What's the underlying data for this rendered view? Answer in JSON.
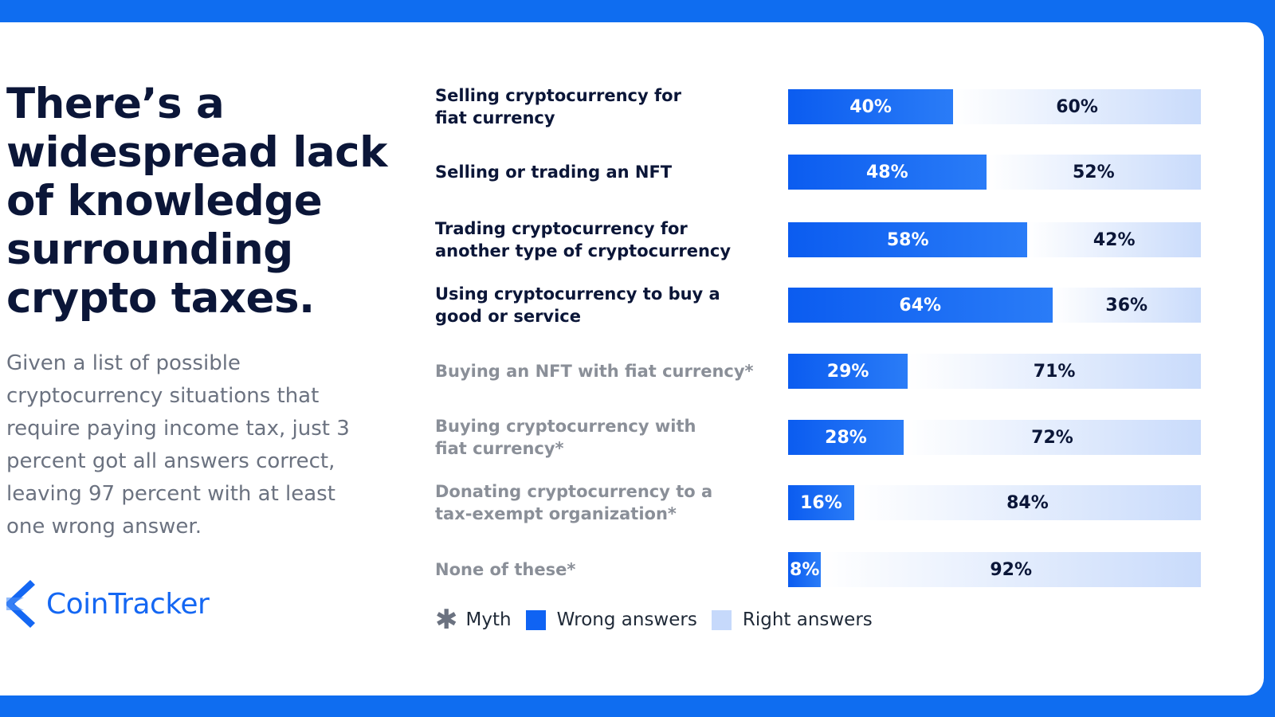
{
  "headline": "There’s a widespread lack of knowledge surrounding crypto taxes.",
  "subtext": "Given a list of possible cryptocurrency situations that require paying income tax, just 3 percent got all answers correct, leaving 97 percent with at least one wrong answer.",
  "logo": {
    "text": "CoinTracker",
    "icon": "cointracker-logo-icon",
    "color": "#1467f3"
  },
  "colors": {
    "wrong": "#0f63f3",
    "right": "#c6d9fb",
    "frame": "#0f6df0"
  },
  "chart_data": {
    "type": "bar",
    "orientation": "horizontal-stacked-100",
    "categories": [
      "Selling cryptocurrency for\nfiat currency",
      "Selling or trading an NFT",
      "Trading cryptocurrency for\nanother type of cryptocurrency",
      "Using cryptocurrency to buy a\ngood or service",
      "Buying an NFT with fiat currency*",
      "Buying cryptocurrency with\nfiat currency*",
      "Donating cryptocurrency to a\ntax-exempt organization*",
      "None of these*"
    ],
    "myth": [
      false,
      false,
      false,
      false,
      true,
      true,
      true,
      true
    ],
    "series": [
      {
        "name": "Wrong answers",
        "values": [
          40,
          48,
          58,
          64,
          29,
          28,
          16,
          8
        ]
      },
      {
        "name": "Right answers",
        "values": [
          60,
          52,
          42,
          36,
          71,
          72,
          84,
          92
        ]
      }
    ],
    "value_suffix": "%",
    "legend": {
      "placement": "bottom-left",
      "entries": [
        "Myth",
        "Wrong answers",
        "Right answers"
      ],
      "myth_symbol": "✱"
    }
  }
}
